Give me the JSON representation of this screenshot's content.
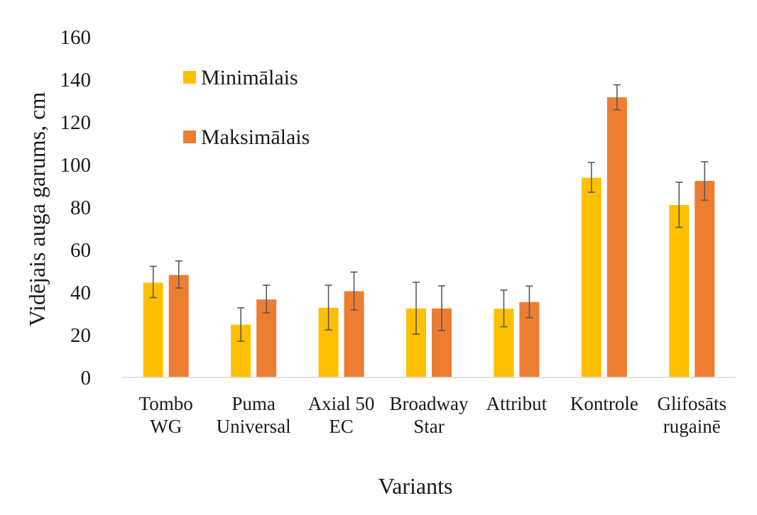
{
  "chart_data": {
    "type": "bar",
    "title": "",
    "xlabel": "Variants",
    "ylabel": "Vidējais auga garums, cm",
    "ylim": [
      0,
      160
    ],
    "yticks": [
      0,
      20,
      40,
      60,
      80,
      100,
      120,
      140,
      160
    ],
    "grid": false,
    "legend_position": "top-left",
    "categories": [
      [
        "Tombo",
        "WG"
      ],
      [
        "Puma",
        "Universal"
      ],
      [
        "Axial 50",
        "EC"
      ],
      [
        "Broadway",
        "Star"
      ],
      [
        "Attribut"
      ],
      [
        "Kontrole"
      ],
      [
        "Glifosāts",
        "rugainē"
      ]
    ],
    "series": [
      {
        "name": "Minimālais",
        "color": "#FFC000",
        "values": [
          44.5,
          24.8,
          32.7,
          32.4,
          32.3,
          93.8,
          81.0
        ],
        "error_low": [
          37.5,
          17.0,
          22.3,
          20.3,
          23.8,
          87.0,
          70.5
        ],
        "error_high": [
          52.2,
          32.7,
          43.3,
          44.7,
          41.0,
          101.0,
          91.7
        ]
      },
      {
        "name": "Maksimālais",
        "color": "#ED7D31",
        "values": [
          48.1,
          36.6,
          40.5,
          32.4,
          35.4,
          131.6,
          92.3
        ],
        "error_low": [
          42.0,
          30.3,
          31.7,
          22.0,
          28.0,
          125.7,
          83.3
        ],
        "error_high": [
          54.7,
          43.3,
          49.5,
          43.0,
          42.9,
          137.5,
          101.3
        ]
      }
    ],
    "error_bar_color": "#595959"
  }
}
